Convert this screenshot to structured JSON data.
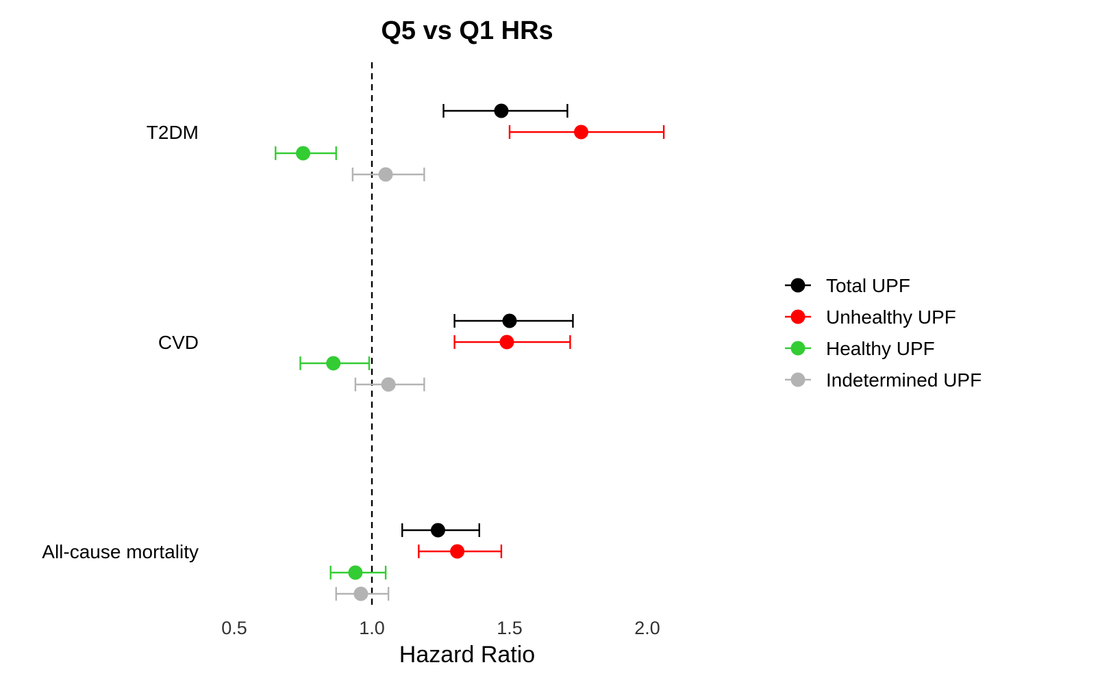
{
  "chart_data": {
    "type": "forest",
    "title": "Q5 vs Q1 HRs",
    "xlabel": "Hazard Ratio",
    "ylabel": "",
    "xlim": [
      0.5,
      2.0
    ],
    "xticks": [
      0.5,
      1.0,
      1.5,
      2.0
    ],
    "xtick_labels": [
      "0.5",
      "1.0",
      "1.5",
      "2.0"
    ],
    "reference_line": 1.0,
    "grid": false,
    "legend_position": "right",
    "categories": [
      "T2DM",
      "CVD",
      "All-cause mortality"
    ],
    "series": [
      {
        "name": "Total UPF",
        "color": "#000000",
        "values": [
          1.47,
          1.5,
          1.24
        ],
        "lower": [
          1.26,
          1.3,
          1.11
        ],
        "upper": [
          1.71,
          1.73,
          1.39
        ]
      },
      {
        "name": "Unhealthy UPF",
        "color": "#ff0000",
        "values": [
          1.76,
          1.49,
          1.31
        ],
        "lower": [
          1.5,
          1.3,
          1.17
        ],
        "upper": [
          2.06,
          1.72,
          1.47
        ]
      },
      {
        "name": "Healthy UPF",
        "color": "#33cc33",
        "values": [
          0.75,
          0.86,
          0.94
        ],
        "lower": [
          0.65,
          0.74,
          0.85
        ],
        "upper": [
          0.87,
          0.99,
          1.05
        ]
      },
      {
        "name": "Indetermined UPF",
        "color": "#b3b3b3",
        "values": [
          1.05,
          1.06,
          0.96
        ],
        "lower": [
          0.93,
          0.94,
          0.87
        ],
        "upper": [
          1.19,
          1.19,
          1.06
        ]
      }
    ]
  }
}
